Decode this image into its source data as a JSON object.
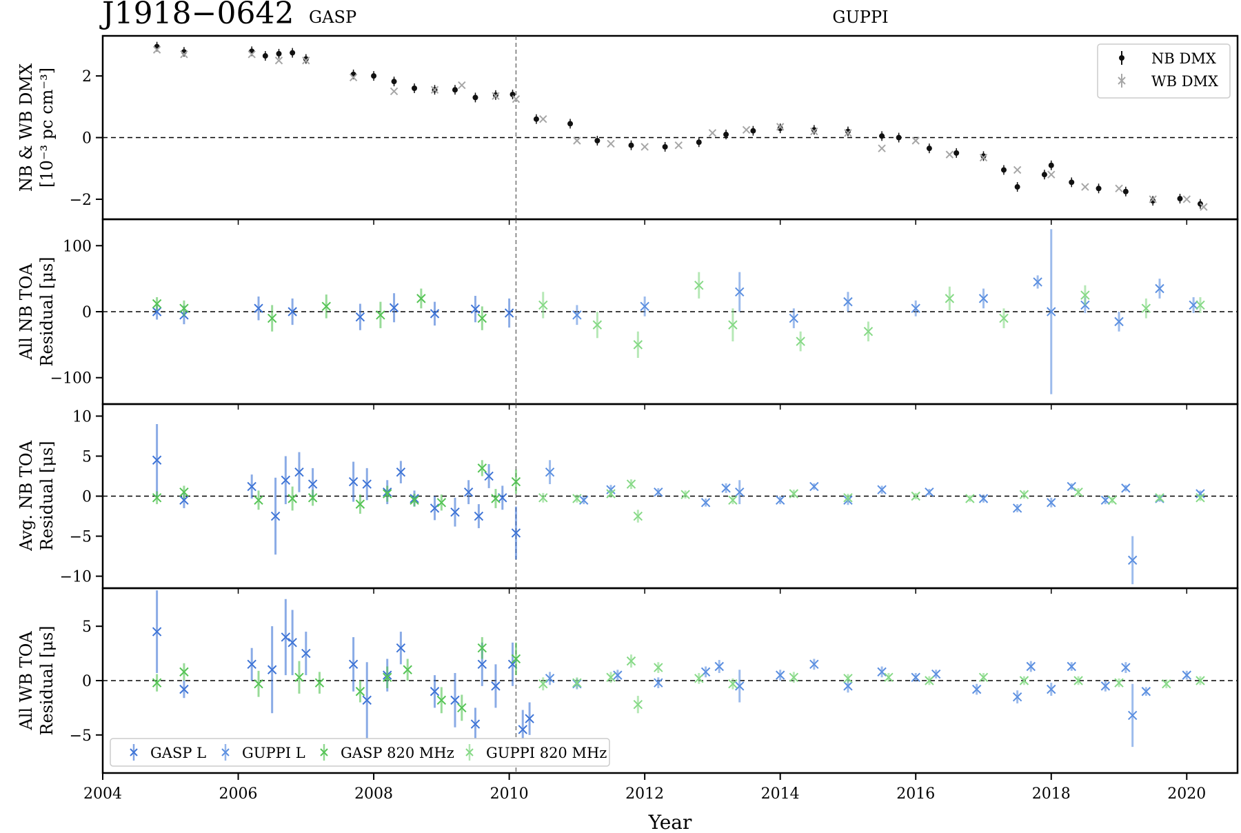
{
  "figure": {
    "title": "J1918−0642",
    "backend_labels": [
      "GASP",
      "GUPPI"
    ],
    "xlabel": "Year",
    "xlim": [
      2004,
      2020.75
    ],
    "x_ticks": [
      "2004",
      "2006",
      "2008",
      "2010",
      "2012",
      "2014",
      "2016",
      "2018",
      "2020"
    ],
    "backend_switch_year": 2010.1,
    "colors": {
      "gasp_l": "#3e74d6",
      "guppi_l": "#5b8fe0",
      "gasp_820": "#55c455",
      "guppi_820": "#86d986",
      "nb_dmx": "#111111",
      "wb_dmx": "#a6a6a6"
    }
  },
  "legends": {
    "dmx": [
      "NB DMX",
      "WB DMX"
    ],
    "toa": [
      "GASP L",
      "GUPPI L",
      "GASP 820 MHz",
      "GUPPI 820 MHz"
    ]
  },
  "chart_data": [
    {
      "type": "scatter",
      "panel": "dmx",
      "ylabel": [
        "NB & WB DMX",
        "[10⁻³ pc cm⁻³]"
      ],
      "ylim": [
        -2.65,
        3.3
      ],
      "y_ticks": [
        "−2",
        "0",
        "2"
      ],
      "y_tick_values": [
        -2,
        0,
        2
      ],
      "legend_position": "top-right",
      "series": [
        {
          "name": "NB DMX",
          "x": [
            2004.8,
            2005.2,
            2006.2,
            2006.4,
            2006.6,
            2006.8,
            2007.0,
            2007.7,
            2008.0,
            2008.3,
            2008.6,
            2008.9,
            2009.2,
            2009.5,
            2009.8,
            2010.05,
            2010.4,
            2010.9,
            2011.3,
            2011.8,
            2012.3,
            2012.8,
            2013.2,
            2013.6,
            2014.0,
            2014.5,
            2015.0,
            2015.5,
            2015.75,
            2016.2,
            2016.6,
            2017.0,
            2017.3,
            2017.5,
            2017.9,
            2018.0,
            2018.3,
            2018.7,
            2019.1,
            2019.5,
            2019.9,
            2020.2
          ],
          "y": [
            2.95,
            2.78,
            2.8,
            2.65,
            2.72,
            2.75,
            2.55,
            2.05,
            2.0,
            1.82,
            1.6,
            1.55,
            1.55,
            1.3,
            1.38,
            1.4,
            0.6,
            0.45,
            -0.1,
            -0.25,
            -0.3,
            -0.15,
            0.1,
            0.22,
            0.3,
            0.25,
            0.2,
            0.05,
            0.0,
            -0.35,
            -0.5,
            -0.6,
            -1.05,
            -1.6,
            -1.2,
            -0.9,
            -1.45,
            -1.65,
            -1.75,
            -2.05,
            -1.98,
            -2.15
          ]
        },
        {
          "name": "WB DMX",
          "x": [
            2004.8,
            2005.2,
            2006.2,
            2006.6,
            2007.0,
            2007.7,
            2008.3,
            2008.9,
            2009.3,
            2009.8,
            2010.1,
            2010.5,
            2011.0,
            2011.5,
            2012.0,
            2012.5,
            2013.0,
            2013.5,
            2014.0,
            2014.5,
            2015.0,
            2015.5,
            2016.0,
            2016.5,
            2017.0,
            2017.5,
            2018.0,
            2018.5,
            2019.0,
            2019.5,
            2020.0,
            2020.25
          ],
          "y": [
            2.85,
            2.7,
            2.7,
            2.5,
            2.5,
            1.95,
            1.5,
            1.55,
            1.7,
            1.35,
            1.25,
            0.6,
            -0.1,
            -0.2,
            -0.3,
            -0.25,
            0.15,
            0.25,
            0.35,
            0.2,
            0.15,
            -0.35,
            -0.1,
            -0.55,
            -0.65,
            -1.05,
            -1.2,
            -1.6,
            -1.65,
            -2.0,
            -2.0,
            -2.25
          ]
        }
      ]
    },
    {
      "type": "scatter",
      "panel": "all_nb_toa",
      "ylabel": [
        "All NB TOA",
        "Residual [μs]"
      ],
      "ylim": [
        -140,
        140
      ],
      "y_ticks": [
        "100",
        "0",
        "−100"
      ],
      "y_tick_values": [
        100,
        0,
        -100
      ],
      "series": [
        {
          "name": "GASP L",
          "x": [
            2004.8,
            2005.2,
            2006.3,
            2006.8,
            2007.8,
            2008.3,
            2008.9,
            2009.5,
            2010.0
          ],
          "y": [
            0,
            -5,
            5,
            0,
            -8,
            6,
            -3,
            4,
            -2
          ],
          "err": [
            12,
            14,
            18,
            20,
            20,
            22,
            18,
            20,
            22
          ]
        },
        {
          "name": "GUPPI L",
          "x": [
            2011.0,
            2012.0,
            2013.4,
            2014.2,
            2015.0,
            2016.0,
            2017.0,
            2017.8,
            2018.0,
            2018.5,
            2019.0,
            2019.6,
            2020.1
          ],
          "y": [
            -5,
            8,
            30,
            -10,
            15,
            5,
            20,
            45,
            0,
            10,
            -15,
            35,
            10
          ],
          "err": [
            15,
            15,
            30,
            15,
            15,
            12,
            15,
            10,
            125,
            12,
            15,
            15,
            12
          ]
        },
        {
          "name": "GASP 820 MHz",
          "x": [
            2004.8,
            2005.2,
            2006.5,
            2007.3,
            2008.1,
            2008.7,
            2009.6
          ],
          "y": [
            12,
            5,
            -10,
            8,
            -5,
            20,
            -10
          ],
          "err": [
            10,
            12,
            20,
            18,
            20,
            15,
            18
          ]
        },
        {
          "name": "GUPPI 820 MHz",
          "x": [
            2010.5,
            2011.3,
            2011.9,
            2012.8,
            2013.3,
            2014.3,
            2015.3,
            2016.5,
            2017.3,
            2018.5,
            2019.4,
            2020.2
          ],
          "y": [
            10,
            -20,
            -50,
            40,
            -20,
            -45,
            -30,
            20,
            -10,
            25,
            5,
            10
          ],
          "err": [
            20,
            20,
            20,
            20,
            25,
            15,
            15,
            18,
            15,
            15,
            15,
            12
          ]
        }
      ]
    },
    {
      "type": "scatter",
      "panel": "avg_nb_toa",
      "ylabel": [
        "Avg. NB TOA",
        "Residual [μs]"
      ],
      "ylim": [
        -11.5,
        11.5
      ],
      "y_ticks": [
        "10",
        "5",
        "0",
        "−5",
        "−10"
      ],
      "y_tick_values": [
        10,
        5,
        0,
        -5,
        -10
      ],
      "series": [
        {
          "name": "GASP L",
          "x": [
            2004.8,
            2005.2,
            2006.2,
            2006.55,
            2006.7,
            2006.9,
            2007.1,
            2007.7,
            2007.9,
            2008.2,
            2008.4,
            2008.6,
            2008.9,
            2009.2,
            2009.4,
            2009.55,
            2009.7,
            2009.9,
            2010.1
          ],
          "y": [
            4.5,
            -0.5,
            1.2,
            -2.5,
            2.0,
            3.0,
            1.5,
            1.8,
            1.5,
            0.5,
            3.0,
            -0.3,
            -1.5,
            -2.0,
            0.5,
            -2.5,
            2.5,
            -0.2,
            -4.6
          ],
          "err": [
            4.5,
            1.0,
            1.5,
            4.8,
            3.0,
            2.5,
            2.0,
            2.5,
            2.0,
            1.5,
            1.4,
            1.0,
            1.5,
            1.8,
            1.5,
            1.5,
            1.5,
            1.5,
            3.3
          ]
        },
        {
          "name": "GUPPI L",
          "x": [
            2010.6,
            2011.1,
            2011.5,
            2012.2,
            2012.9,
            2013.2,
            2013.4,
            2014.0,
            2014.5,
            2015.0,
            2015.5,
            2016.2,
            2017.0,
            2017.5,
            2018.0,
            2018.3,
            2018.8,
            2019.1,
            2019.2,
            2019.6,
            2020.2
          ],
          "y": [
            3.0,
            -0.5,
            0.8,
            0.5,
            -0.8,
            1.0,
            0.5,
            -0.5,
            1.2,
            -0.5,
            0.8,
            0.5,
            -0.3,
            -1.5,
            -0.8,
            1.2,
            -0.5,
            1.0,
            -8.0,
            -0.3,
            0.3
          ],
          "err": [
            1.5,
            0.5,
            0.6,
            0.5,
            0.5,
            0.6,
            1.5,
            0.5,
            0.4,
            0.6,
            0.5,
            0.4,
            0.5,
            0.5,
            0.6,
            0.4,
            0.5,
            0.4,
            3.0,
            0.4,
            0.4
          ]
        },
        {
          "name": "GASP 820 MHz",
          "x": [
            2004.8,
            2005.2,
            2006.3,
            2006.8,
            2007.1,
            2007.8,
            2008.2,
            2008.6,
            2009.0,
            2009.6,
            2009.8,
            2010.1
          ],
          "y": [
            -0.2,
            0.5,
            -0.5,
            -0.3,
            -0.2,
            -1.0,
            0.3,
            -0.5,
            -0.8,
            3.5,
            -0.3,
            1.8
          ],
          "err": [
            0.8,
            0.8,
            1.2,
            1.5,
            1.0,
            1.2,
            1.0,
            0.8,
            1.0,
            1.0,
            1.2,
            1.5
          ]
        },
        {
          "name": "GUPPI 820 MHz",
          "x": [
            2010.5,
            2011.0,
            2011.5,
            2011.8,
            2011.9,
            2012.6,
            2013.3,
            2014.2,
            2015.0,
            2016.0,
            2016.8,
            2017.6,
            2018.4,
            2018.9,
            2019.6,
            2020.2
          ],
          "y": [
            -0.2,
            -0.3,
            0.3,
            1.5,
            -2.5,
            0.2,
            -0.5,
            0.3,
            -0.2,
            0.0,
            -0.3,
            0.2,
            0.5,
            -0.5,
            -0.2,
            -0.2
          ],
          "err": [
            0.6,
            0.5,
            0.5,
            0.6,
            0.8,
            0.5,
            0.5,
            0.5,
            0.5,
            0.4,
            0.4,
            0.5,
            0.5,
            0.4,
            0.4,
            0.4
          ]
        }
      ]
    },
    {
      "type": "scatter",
      "panel": "all_wb_toa",
      "ylabel": [
        "All WB TOA",
        "Residual [μs]"
      ],
      "ylim": [
        -8.5,
        8.5
      ],
      "y_ticks": [
        "5",
        "0",
        "−5"
      ],
      "y_tick_values": [
        5,
        0,
        -5
      ],
      "legend_position": "bottom-left",
      "series": [
        {
          "name": "GASP L",
          "x": [
            2004.8,
            2005.2,
            2006.2,
            2006.5,
            2006.7,
            2006.8,
            2007.0,
            2007.7,
            2007.9,
            2008.2,
            2008.4,
            2008.9,
            2009.2,
            2009.5,
            2009.6,
            2009.8,
            2010.05,
            2010.2,
            2010.3
          ],
          "y": [
            4.5,
            -0.8,
            1.5,
            1.0,
            4.0,
            3.5,
            2.5,
            1.5,
            -1.8,
            0.5,
            3.0,
            -1.0,
            -1.8,
            -4.0,
            1.5,
            -0.5,
            1.5,
            -4.5,
            -3.5
          ],
          "err": [
            3.8,
            0.8,
            1.5,
            4.0,
            3.5,
            3.0,
            2.0,
            2.5,
            3.5,
            1.5,
            1.5,
            1.5,
            2.5,
            1.5,
            2.0,
            2.0,
            2.0,
            1.8,
            1.5
          ]
        },
        {
          "name": "GUPPI L",
          "x": [
            2010.6,
            2011.0,
            2011.6,
            2012.2,
            2012.9,
            2013.1,
            2013.4,
            2014.0,
            2014.5,
            2015.0,
            2015.5,
            2016.0,
            2016.3,
            2016.9,
            2017.5,
            2017.7,
            2018.0,
            2018.3,
            2018.8,
            2019.1,
            2019.2,
            2019.4,
            2020.0
          ],
          "y": [
            0.2,
            -0.3,
            0.5,
            -0.2,
            0.8,
            1.3,
            -0.5,
            0.5,
            1.5,
            -0.5,
            0.8,
            0.3,
            0.6,
            -0.8,
            -1.5,
            1.3,
            -0.8,
            1.3,
            -0.5,
            1.2,
            -3.2,
            -1.0,
            0.5
          ],
          "err": [
            0.6,
            0.5,
            0.5,
            0.5,
            0.5,
            0.6,
            1.5,
            0.5,
            0.5,
            0.6,
            0.5,
            0.4,
            0.4,
            0.5,
            0.6,
            0.5,
            0.6,
            0.4,
            0.5,
            0.5,
            2.9,
            0.4,
            0.4
          ]
        },
        {
          "name": "GASP 820 MHz",
          "x": [
            2004.8,
            2005.2,
            2006.3,
            2006.9,
            2007.2,
            2007.8,
            2008.2,
            2008.5,
            2009.0,
            2009.3,
            2009.6,
            2010.1
          ],
          "y": [
            -0.2,
            0.8,
            -0.3,
            0.3,
            -0.2,
            -1.0,
            0.3,
            1.0,
            -1.8,
            -2.5,
            3.0,
            2.0
          ],
          "err": [
            0.8,
            0.8,
            1.2,
            1.5,
            1.0,
            1.0,
            1.0,
            1.0,
            1.2,
            1.2,
            1.0,
            1.5
          ]
        },
        {
          "name": "GUPPI 820 MHz",
          "x": [
            2010.5,
            2011.0,
            2011.5,
            2011.8,
            2011.9,
            2012.2,
            2012.8,
            2013.3,
            2014.2,
            2015.0,
            2015.6,
            2016.2,
            2017.0,
            2017.6,
            2018.4,
            2019.0,
            2019.7,
            2020.2
          ],
          "y": [
            -0.3,
            -0.2,
            0.3,
            1.8,
            -2.2,
            1.2,
            0.2,
            -0.3,
            0.3,
            0.2,
            0.3,
            0.0,
            0.3,
            0.0,
            0.0,
            -0.2,
            -0.3,
            0.0
          ],
          "err": [
            0.6,
            0.5,
            0.5,
            0.6,
            0.8,
            0.5,
            0.5,
            0.5,
            0.5,
            0.4,
            0.4,
            0.4,
            0.4,
            0.4,
            0.4,
            0.4,
            0.4,
            0.4
          ]
        }
      ]
    }
  ]
}
